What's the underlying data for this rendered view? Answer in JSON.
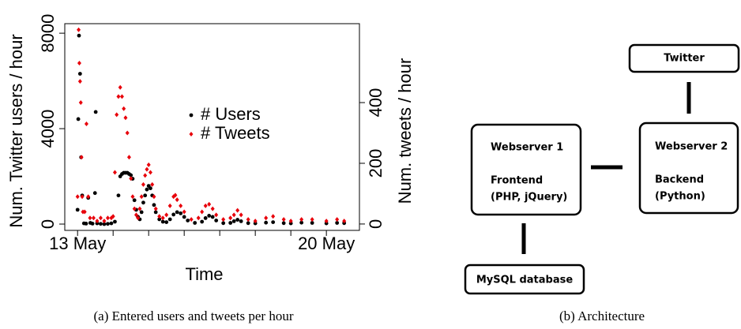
{
  "chart_data": {
    "type": "scatter",
    "ylabel": "Num. Twitter users / hour",
    "y2label": "Num. tweets / hour",
    "xlabel": "Time",
    "xlim": [
      -0.36,
      7.93
    ],
    "xticks": [
      {
        "value": 0,
        "label": "13 May"
      },
      {
        "value": 7,
        "label": "20 May"
      }
    ],
    "xminor_ticks": [
      1,
      2,
      3,
      4,
      5,
      6
    ],
    "ylim": [
      -264,
      8400
    ],
    "yticks": [
      0,
      4000,
      8000
    ],
    "y2lim": [
      -21,
      660
    ],
    "y2ticks": [
      0,
      200,
      400
    ],
    "legend": "upper center",
    "series": [
      {
        "name": "# Users",
        "color": "#000000",
        "marker": "circle",
        "x": [
          0.0,
          0.02,
          0.04,
          0.07,
          0.1,
          0.13,
          0.18,
          0.24,
          0.3,
          0.36,
          0.42,
          0.49,
          0.51,
          0.55,
          0.65,
          0.75,
          0.85,
          0.95,
          1.05,
          1.15,
          1.2,
          1.25,
          1.3,
          1.35,
          1.4,
          1.45,
          1.5,
          1.55,
          1.6,
          1.65,
          1.7,
          1.75,
          1.8,
          1.85,
          1.9,
          1.95,
          2.0,
          2.05,
          2.1,
          2.15,
          2.2,
          2.3,
          2.4,
          2.5,
          2.6,
          2.7,
          2.8,
          2.9,
          3.0,
          3.1,
          3.3,
          3.5,
          3.6,
          3.7,
          3.8,
          3.9,
          4.1,
          4.3,
          4.4,
          4.5,
          4.6,
          4.8,
          5.0,
          5.3,
          5.5,
          5.8,
          6.0,
          6.3,
          6.6,
          7.0,
          7.3,
          7.5
        ],
        "values": [
          600,
          4400,
          7900,
          6300,
          2800,
          1200,
          30,
          20,
          1100,
          50,
          20,
          1300,
          4700,
          30,
          10,
          0,
          10,
          30,
          100,
          1200,
          2000,
          2100,
          2150,
          2150,
          2150,
          2100,
          2050,
          1900,
          1000,
          600,
          300,
          200,
          500,
          900,
          1200,
          1450,
          1600,
          1500,
          1200,
          800,
          500,
          200,
          100,
          80,
          200,
          400,
          500,
          450,
          300,
          150,
          50,
          100,
          250,
          350,
          300,
          150,
          40,
          50,
          120,
          180,
          120,
          40,
          30,
          60,
          80,
          40,
          30,
          60,
          50,
          30,
          50,
          40
        ]
      },
      {
        "name": "# Tweets",
        "color": "#e8000b",
        "marker": "diamond",
        "axis": "y2",
        "x": [
          0.0,
          0.03,
          0.05,
          0.07,
          0.09,
          0.11,
          0.13,
          0.15,
          0.2,
          0.25,
          0.3,
          0.35,
          0.45,
          0.55,
          0.65,
          0.75,
          0.85,
          0.95,
          1.0,
          1.05,
          1.1,
          1.15,
          1.2,
          1.25,
          1.3,
          1.35,
          1.4,
          1.45,
          1.5,
          1.55,
          1.6,
          1.65,
          1.7,
          1.75,
          1.8,
          1.85,
          1.9,
          1.95,
          2.0,
          2.05,
          2.1,
          2.15,
          2.2,
          2.3,
          2.4,
          2.5,
          2.6,
          2.7,
          2.75,
          2.8,
          2.9,
          3.0,
          3.2,
          3.4,
          3.5,
          3.6,
          3.7,
          3.8,
          3.9,
          4.1,
          4.3,
          4.4,
          4.5,
          4.6,
          4.8,
          5.0,
          5.3,
          5.5,
          5.8,
          6.0,
          6.3,
          6.6,
          7.0,
          7.3,
          7.5
        ],
        "values": [
          90,
          640,
          530,
          470,
          400,
          220,
          90,
          40,
          40,
          330,
          90,
          20,
          20,
          10,
          20,
          10,
          20,
          20,
          25,
          170,
          360,
          420,
          450,
          420,
          380,
          350,
          300,
          220,
          150,
          90,
          50,
          30,
          20,
          50,
          90,
          130,
          160,
          180,
          195,
          170,
          130,
          90,
          50,
          25,
          20,
          30,
          60,
          90,
          95,
          80,
          60,
          40,
          15,
          20,
          40,
          60,
          65,
          50,
          30,
          15,
          20,
          30,
          45,
          30,
          15,
          10,
          20,
          25,
          15,
          10,
          15,
          15,
          10,
          15,
          10
        ]
      }
    ]
  },
  "captions": [
    "(a)  Entered users and tweets per hour",
    "(b)  Architecture"
  ],
  "diagram": {
    "nodes": [
      {
        "title": "Twitter"
      },
      {
        "title": "Webserver 2",
        "lines": [
          "Backend",
          "(Python)"
        ]
      },
      {
        "title": "Webserver 1",
        "lines": [
          "Frontend",
          "(PHP, jQuery)"
        ]
      },
      {
        "title": "MySQL database"
      }
    ]
  }
}
